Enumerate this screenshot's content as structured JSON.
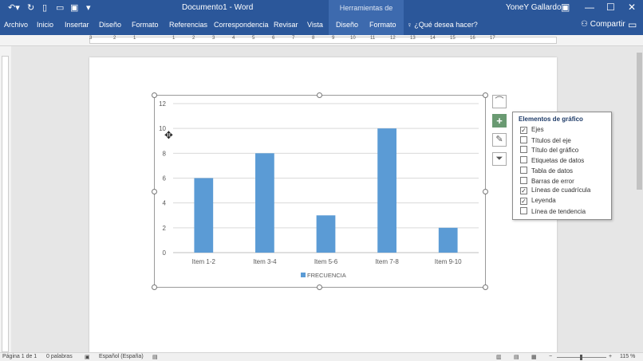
{
  "titlebar": {
    "title": "Documento1  -  Word",
    "context_title": "Herramientas de gráficos",
    "user": "YoneY Gallardo"
  },
  "ribbon": {
    "tabs": [
      "Archivo",
      "Inicio",
      "Insertar",
      "Diseño",
      "Formato",
      "Referencias",
      "Correspondencia",
      "Revisar",
      "Vista",
      "Diseño",
      "Formato"
    ],
    "tell_me": "¿Qué desea hacer?",
    "share": "Compartir"
  },
  "ruler": {
    "ticks": [
      "3",
      "2",
      "1",
      "1",
      "2",
      "3",
      "4",
      "5",
      "6",
      "7",
      "8",
      "9",
      "10",
      "11",
      "12",
      "13",
      "14",
      "15",
      "16",
      "17"
    ]
  },
  "chart_elements": {
    "title": "Elementos de gráfico",
    "items": [
      {
        "label": "Ejes",
        "checked": true
      },
      {
        "label": "Títulos del eje",
        "checked": false
      },
      {
        "label": "Título del gráfico",
        "checked": false
      },
      {
        "label": "Etiquetas de datos",
        "checked": false
      },
      {
        "label": "Tabla de datos",
        "checked": false
      },
      {
        "label": "Barras de error",
        "checked": false
      },
      {
        "label": "Líneas de cuadrícula",
        "checked": true
      },
      {
        "label": "Leyenda",
        "checked": true
      },
      {
        "label": "Línea de tendencia",
        "checked": false
      }
    ]
  },
  "chart_data": {
    "type": "bar",
    "categories": [
      "Item 1-2",
      "Item 3-4",
      "Item 5-6",
      "Item 7-8",
      "Item 9-10"
    ],
    "series": [
      {
        "name": "FRECUENCIA",
        "values": [
          6,
          8,
          3,
          10,
          2
        ],
        "color": "#5b9bd5"
      }
    ],
    "y_ticks": [
      "0",
      "2",
      "4",
      "6",
      "8",
      "10",
      "12"
    ],
    "ylim": [
      0,
      12
    ],
    "grid": true,
    "legend": "bottom",
    "title": "",
    "xlabel": "",
    "ylabel": ""
  },
  "statusbar": {
    "page": "Página 1 de 1",
    "words": "0 palabras",
    "language": "Español (España)",
    "zoom": "115 %"
  },
  "colors": {
    "word_blue": "#2b579a",
    "context_blue": "#3d6aae",
    "bar": "#5b9bd5",
    "plus_button": "#6a9a72"
  }
}
